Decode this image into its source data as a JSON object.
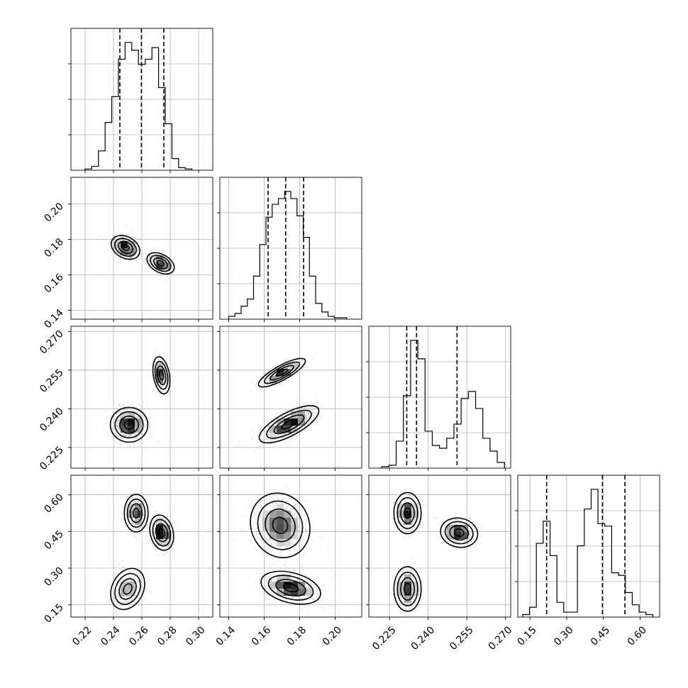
{
  "chart_data": {
    "type": "corner",
    "parameters": 4,
    "axes": [
      {
        "range": [
          0.21,
          0.31
        ],
        "ticks": [
          "0.22",
          "0.24",
          "0.26",
          "0.28",
          "0.30"
        ],
        "tick_values": [
          0.22,
          0.24,
          0.26,
          0.28,
          0.3
        ]
      },
      {
        "range": [
          0.135,
          0.215
        ],
        "ticks": [
          "0.14",
          "0.16",
          "0.18",
          "0.20"
        ],
        "tick_values": [
          0.14,
          0.16,
          0.18,
          0.2
        ]
      },
      {
        "range": [
          0.217,
          0.272
        ],
        "ticks": [
          "0.225",
          "0.240",
          "0.255",
          "0.270"
        ],
        "tick_values": [
          0.225,
          0.24,
          0.255,
          0.27
        ]
      },
      {
        "range": [
          0.1,
          0.68
        ],
        "ticks": [
          "0.15",
          "0.30",
          "0.45",
          "0.60"
        ],
        "tick_values": [
          0.15,
          0.3,
          0.45,
          0.6
        ]
      }
    ],
    "histograms": [
      {
        "param": 0,
        "bin_edges": [
          0.22,
          0.2247,
          0.2294,
          0.2341,
          0.2388,
          0.2435,
          0.2482,
          0.2529,
          0.2576,
          0.2624,
          0.2671,
          0.2718,
          0.2765,
          0.2812,
          0.2859,
          0.2906,
          0.2953
        ],
        "counts": [
          1,
          3,
          15,
          37,
          57,
          86,
          99,
          93,
          82,
          86,
          95,
          64,
          36,
          9,
          2,
          1
        ],
        "quantiles": [
          0.2445,
          0.2597,
          0.2755
        ]
      },
      {
        "param": 1,
        "bin_edges": [
          0.14,
          0.1435,
          0.147,
          0.1505,
          0.154,
          0.1575,
          0.161,
          0.1645,
          0.168,
          0.1715,
          0.175,
          0.1785,
          0.182,
          0.1855,
          0.189,
          0.1925,
          0.196,
          0.1995,
          0.203,
          0.2065
        ],
        "counts": [
          2,
          4,
          9,
          14,
          30,
          52,
          71,
          80,
          84,
          89,
          84,
          72,
          57,
          30,
          11,
          5,
          2,
          1,
          1
        ],
        "quantiles": [
          0.1622,
          0.1721,
          0.1822
        ]
      },
      {
        "param": 2,
        "bin_edges": [
          0.222,
          0.2248,
          0.2276,
          0.2304,
          0.2332,
          0.236,
          0.2388,
          0.2416,
          0.2444,
          0.2472,
          0.25,
          0.2528,
          0.2556,
          0.2584,
          0.2612,
          0.264,
          0.2668,
          0.2696
        ],
        "counts": [
          1,
          2,
          19,
          51,
          90,
          77,
          26,
          16,
          14,
          21,
          31,
          49,
          54,
          42,
          21,
          12,
          4
        ],
        "quantiles": [
          0.2317,
          0.2355,
          0.2512
        ]
      },
      {
        "param": 3,
        "bin_edges": [
          0.12,
          0.148,
          0.176,
          0.204,
          0.232,
          0.26,
          0.288,
          0.316,
          0.344,
          0.372,
          0.4,
          0.428,
          0.456,
          0.484,
          0.512,
          0.54,
          0.568,
          0.596,
          0.624,
          0.652
        ],
        "counts": [
          1,
          4,
          30,
          39,
          25,
          6,
          2,
          2,
          29,
          44,
          52,
          38,
          37,
          18,
          17,
          10,
          5,
          2,
          1
        ],
        "quantiles": [
          0.218,
          0.446,
          0.538
        ]
      }
    ],
    "contours": [
      {
        "x_param": 0,
        "y_param": 1,
        "modes": [
          {
            "cx": 0.2485,
            "cy": 0.1755,
            "sx": 0.0042,
            "sy": 0.0028,
            "rho": -0.3,
            "weight": 0.56
          },
          {
            "cx": 0.2732,
            "cy": 0.1665,
            "sx": 0.004,
            "sy": 0.0025,
            "rho": -0.4,
            "weight": 0.44
          }
        ]
      },
      {
        "x_param": 0,
        "y_param": 2,
        "modes": [
          {
            "cx": 0.251,
            "cy": 0.2338,
            "sx": 0.0055,
            "sy": 0.0028,
            "rho": 0.0,
            "weight": 0.7
          },
          {
            "cx": 0.2738,
            "cy": 0.253,
            "sx": 0.0025,
            "sy": 0.003,
            "rho": -0.3,
            "weight": 0.3
          }
        ]
      },
      {
        "x_param": 1,
        "y_param": 2,
        "modes": [
          {
            "cx": 0.174,
            "cy": 0.234,
            "sx": 0.007,
            "sy": 0.003,
            "rho": 0.72,
            "weight": 0.65
          },
          {
            "cx": 0.17,
            "cy": 0.254,
            "sx": 0.0055,
            "sy": 0.0023,
            "rho": 0.82,
            "weight": 0.35
          }
        ]
      },
      {
        "x_param": 0,
        "y_param": 3,
        "modes": [
          {
            "cx": 0.25,
            "cy": 0.215,
            "sx": 0.005,
            "sy": 0.035,
            "rho": 0.25,
            "weight": 0.3
          },
          {
            "cx": 0.256,
            "cy": 0.525,
            "sx": 0.0035,
            "sy": 0.032,
            "rho": 0.0,
            "weight": 0.3
          },
          {
            "cx": 0.274,
            "cy": 0.445,
            "sx": 0.0035,
            "sy": 0.03,
            "rho": -0.2,
            "weight": 0.4
          }
        ]
      },
      {
        "x_param": 1,
        "y_param": 3,
        "modes": [
          {
            "cx": 0.169,
            "cy": 0.475,
            "sx": 0.007,
            "sy": 0.055,
            "rho": -0.1,
            "weight": 0.6
          },
          {
            "cx": 0.175,
            "cy": 0.22,
            "sx": 0.007,
            "sy": 0.028,
            "rho": -0.35,
            "weight": 0.4
          }
        ]
      },
      {
        "x_param": 2,
        "y_param": 3,
        "modes": [
          {
            "cx": 0.232,
            "cy": 0.525,
            "sx": 0.0022,
            "sy": 0.035,
            "rho": 0.0,
            "weight": 0.33
          },
          {
            "cx": 0.252,
            "cy": 0.445,
            "sx": 0.003,
            "sy": 0.025,
            "rho": -0.1,
            "weight": 0.34
          },
          {
            "cx": 0.232,
            "cy": 0.215,
            "sx": 0.0022,
            "sy": 0.038,
            "rho": 0.0,
            "weight": 0.33
          }
        ]
      }
    ],
    "contour_levels_sigma": [
      0.5,
      1.0,
      1.5,
      2.0
    ],
    "grid": true,
    "legend": "none"
  }
}
